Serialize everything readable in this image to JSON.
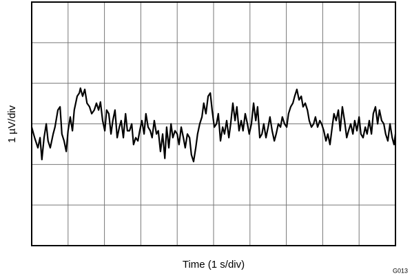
{
  "chart_data": {
    "type": "line",
    "x_label": "Time (1 s/div)",
    "y_label": "1 µV/div",
    "note": "G013",
    "xlim": [
      0,
      10
    ],
    "ylim": [
      -3,
      3
    ],
    "xticks": [
      0,
      1,
      2,
      3,
      4,
      5,
      6,
      7,
      8,
      9,
      10
    ],
    "yticks": [
      -3,
      -2,
      -1,
      0,
      1,
      2,
      3
    ],
    "grid": true,
    "series": [
      {
        "color": "#000000",
        "x": [
          0,
          0.08,
          0.17,
          0.23,
          0.28,
          0.34,
          0.4,
          0.45,
          0.51,
          0.59,
          0.64,
          0.72,
          0.78,
          0.83,
          0.89,
          0.95,
          1.0,
          1.06,
          1.12,
          1.17,
          1.25,
          1.31,
          1.34,
          1.4,
          1.46,
          1.52,
          1.59,
          1.65,
          1.72,
          1.78,
          1.84,
          1.89,
          1.95,
          2.01,
          2.06,
          2.12,
          2.18,
          2.23,
          2.29,
          2.35,
          2.41,
          2.46,
          2.52,
          2.58,
          2.63,
          2.69,
          2.75,
          2.8,
          2.86,
          2.92,
          2.97,
          3.03,
          3.09,
          3.14,
          3.2,
          3.26,
          3.31,
          3.37,
          3.43,
          3.48,
          3.54,
          3.6,
          3.66,
          3.71,
          3.77,
          3.83,
          3.88,
          3.94,
          4.0,
          4.05,
          4.11,
          4.17,
          4.22,
          4.28,
          4.34,
          4.39,
          4.45,
          4.51,
          4.56,
          4.62,
          4.68,
          4.73,
          4.79,
          4.85,
          4.91,
          4.96,
          5.02,
          5.08,
          5.13,
          5.19,
          5.25,
          5.3,
          5.36,
          5.42,
          5.47,
          5.53,
          5.59,
          5.64,
          5.7,
          5.76,
          5.81,
          5.87,
          5.93,
          5.98,
          6.04,
          6.1,
          6.16,
          6.21,
          6.27,
          6.33,
          6.38,
          6.44,
          6.5,
          6.55,
          6.61,
          6.67,
          6.72,
          6.78,
          6.84,
          6.89,
          6.95,
          7.01,
          7.06,
          7.12,
          7.18,
          7.23,
          7.29,
          7.35,
          7.41,
          7.46,
          7.52,
          7.58,
          7.63,
          7.69,
          7.75,
          7.8,
          7.86,
          7.92,
          7.97,
          8.03,
          8.09,
          8.14,
          8.2,
          8.26,
          8.31,
          8.37,
          8.43,
          8.48,
          8.54,
          8.6,
          8.66,
          8.71,
          8.77,
          8.83,
          8.88,
          8.94,
          9.0,
          9.05,
          9.11,
          9.17,
          9.22,
          9.28,
          9.34,
          9.39,
          9.45,
          9.51,
          9.56,
          9.62,
          9.68,
          9.73,
          9.79,
          9.85,
          9.91,
          9.96,
          10.0
        ],
        "values": [
          -0.08,
          -0.34,
          -0.59,
          -0.34,
          -0.88,
          -0.34,
          0,
          -0.42,
          -0.59,
          -0.25,
          -0.08,
          0.34,
          0.42,
          -0.25,
          -0.42,
          -0.68,
          -0.17,
          0.17,
          -0.17,
          0.34,
          0.68,
          0.76,
          0.88,
          0.68,
          0.85,
          0.51,
          0.42,
          0.25,
          0.34,
          0.51,
          0.34,
          0.54,
          0.08,
          -0.17,
          0.34,
          0.25,
          -0.25,
          0.08,
          0.34,
          -0.34,
          -0.08,
          0.08,
          -0.34,
          0.25,
          -0.17,
          -0.17,
          0,
          -0.51,
          -0.34,
          -0.42,
          -0.17,
          0.08,
          -0.25,
          0.25,
          -0.08,
          -0.17,
          -0.34,
          0.08,
          -0.25,
          -0.17,
          -0.68,
          -0.25,
          -0.85,
          -0.08,
          -0.59,
          0,
          -0.34,
          -0.17,
          -0.25,
          -0.51,
          -0.08,
          -0.34,
          -0.59,
          -0.25,
          -0.34,
          -0.76,
          -0.93,
          -0.59,
          -0.25,
          0,
          0.17,
          0.51,
          0.25,
          0.68,
          0.76,
          0.34,
          -0.08,
          0,
          0.25,
          -0.42,
          -0.08,
          -0.25,
          0.08,
          -0.34,
          0,
          0.51,
          0.08,
          0.42,
          -0.17,
          0.08,
          -0.17,
          0.25,
          0,
          -0.25,
          0,
          0.51,
          0.08,
          0.42,
          -0.34,
          -0.25,
          0,
          -0.34,
          -0.08,
          0.17,
          -0.17,
          -0.42,
          -0.25,
          0,
          -0.08,
          0.17,
          0,
          -0.08,
          0.25,
          0.42,
          0.51,
          0.68,
          0.85,
          0.59,
          0.68,
          0.42,
          0.51,
          0.34,
          0.08,
          -0.08,
          0,
          0.17,
          -0.08,
          0.08,
          0,
          -0.17,
          -0.42,
          -0.25,
          -0.51,
          -0.08,
          0.25,
          0.08,
          0.34,
          -0.17,
          0.42,
          0.08,
          -0.34,
          -0.17,
          0,
          -0.25,
          0.08,
          -0.17,
          0.17,
          -0.25,
          -0.34,
          -0.08,
          -0.25,
          0.08,
          -0.25,
          0.25,
          0.42,
          0,
          0.34,
          0.08,
          0,
          -0.25,
          -0.42,
          0,
          -0.34,
          -0.51,
          -0.25
        ]
      }
    ]
  }
}
